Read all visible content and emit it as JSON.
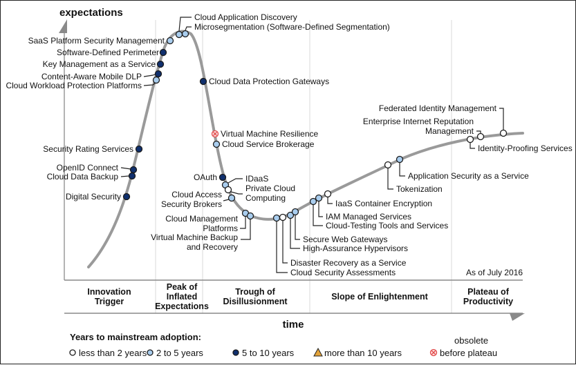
{
  "axes": {
    "y_label": "expectations",
    "x_label": "time"
  },
  "as_of": "As of July 2016",
  "phases": [
    {
      "lines": [
        "Innovation",
        "Trigger"
      ]
    },
    {
      "lines": [
        "Peak of",
        "Inflated",
        "Expectations"
      ]
    },
    {
      "lines": [
        "Trough of",
        "Disillusionment"
      ]
    },
    {
      "lines": [
        "Slope of Enlightenment"
      ]
    },
    {
      "lines": [
        "Plateau of",
        "Productivity"
      ]
    }
  ],
  "colors": {
    "curve": "#9a9a9a",
    "lt2": "#ffffff",
    "2to5": "#a9cdee",
    "5to10": "#10306e",
    "gt10": "#e3a33a",
    "obsolete": "#e04848"
  },
  "technologies": [
    {
      "lines": [
        "Cloud Application Discovery"
      ],
      "adoption": "2to5"
    },
    {
      "lines": [
        "Microsegmentation (Software-Defined Segmentation)"
      ],
      "adoption": "2to5"
    },
    {
      "lines": [
        "SaaS Platform Security Management"
      ],
      "adoption": "2to5"
    },
    {
      "lines": [
        "Software-Defined Perimeter"
      ],
      "adoption": "5to10"
    },
    {
      "lines": [
        "Key Management as a Service"
      ],
      "adoption": "5to10"
    },
    {
      "lines": [
        "Content-Aware Mobile DLP"
      ],
      "adoption": "5to10"
    },
    {
      "lines": [
        "Cloud Workload Protection Platforms"
      ],
      "adoption": "2to5"
    },
    {
      "lines": [
        "Cloud Data Protection Gateways"
      ],
      "adoption": "5to10"
    },
    {
      "lines": [
        "Virtual Machine Resilience"
      ],
      "adoption": "obsolete"
    },
    {
      "lines": [
        "Cloud Service Brokerage"
      ],
      "adoption": "2to5"
    },
    {
      "lines": [
        "Security Rating Services"
      ],
      "adoption": "5to10"
    },
    {
      "lines": [
        "OpenID Connect"
      ],
      "adoption": "5to10"
    },
    {
      "lines": [
        "Cloud Data Backup"
      ],
      "adoption": "5to10"
    },
    {
      "lines": [
        "Digital Security"
      ],
      "adoption": "5to10"
    },
    {
      "lines": [
        "OAuth"
      ],
      "adoption": "5to10"
    },
    {
      "lines": [
        "IDaaS"
      ],
      "adoption": "2to5"
    },
    {
      "lines": [
        "Private Cloud",
        "Computing"
      ],
      "adoption": "lt2"
    },
    {
      "lines": [
        "Cloud Access",
        "Security Brokers"
      ],
      "adoption": "2to5"
    },
    {
      "lines": [
        "Cloud Management",
        "Platforms"
      ],
      "adoption": "2to5"
    },
    {
      "lines": [
        "Virtual Machine Backup",
        "and Recovery"
      ],
      "adoption": "2to5"
    },
    {
      "lines": [
        "Cloud Security Assessments"
      ],
      "adoption": "2to5"
    },
    {
      "lines": [
        "Disaster Recovery as a Service"
      ],
      "adoption": "lt2"
    },
    {
      "lines": [
        "High-Assurance Hypervisors"
      ],
      "adoption": "2to5"
    },
    {
      "lines": [
        "Secure Web Gateways"
      ],
      "adoption": "2to5"
    },
    {
      "lines": [
        "Cloud-Testing Tools and Services"
      ],
      "adoption": "2to5"
    },
    {
      "lines": [
        "IAM Managed Services"
      ],
      "adoption": "2to5"
    },
    {
      "lines": [
        "IaaS Container Encryption"
      ],
      "adoption": "lt2"
    },
    {
      "lines": [
        "Tokenization"
      ],
      "adoption": "lt2"
    },
    {
      "lines": [
        "Application Security as a Service"
      ],
      "adoption": "2to5"
    },
    {
      "lines": [
        "Identity-Proofing Services"
      ],
      "adoption": "lt2"
    },
    {
      "lines": [
        "Enterprise Internet Reputation",
        "Management"
      ],
      "adoption": "lt2"
    },
    {
      "lines": [
        "Federated Identity Management"
      ],
      "adoption": "lt2"
    }
  ],
  "legend": {
    "title": "Years to mainstream adoption:",
    "items": [
      {
        "key": "lt2",
        "label": "less than 2 years"
      },
      {
        "key": "2to5",
        "label": "2 to 5 years"
      },
      {
        "key": "5to10",
        "label": "5 to 10 years"
      },
      {
        "key": "gt10",
        "label": "more than 10 years"
      },
      {
        "key": "obsolete",
        "label": "before plateau",
        "label_top": "obsolete"
      }
    ]
  }
}
